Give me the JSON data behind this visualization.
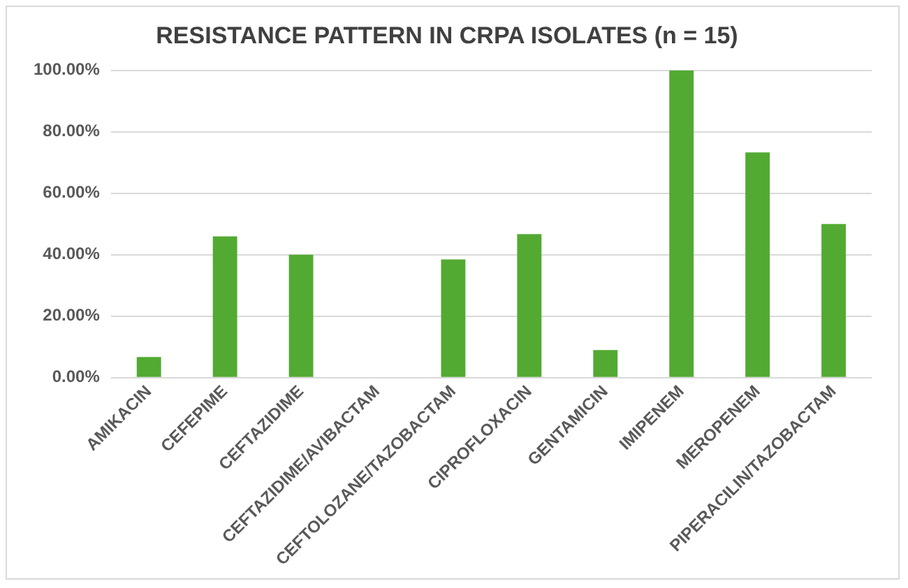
{
  "chart_data": {
    "type": "bar",
    "title": "RESISTANCE PATTERN IN CRPA ISOLATES (n = 15)",
    "categories": [
      "AMIKACIN",
      "CEFEPIME",
      "CEFTAZIDIME",
      "CEFTAZIDIME/AVIBACTAM",
      "CEFTOLOZANE/TAZOBACTAM",
      "CIPROFLOXACIN",
      "GENTAMICIN",
      "IMIPENEM",
      "MEROPENEM",
      "PIPERACILIN/TAZOBACTAM"
    ],
    "values": [
      6.7,
      46,
      40,
      0,
      38.5,
      46.7,
      9,
      100,
      73.3,
      50
    ],
    "color": "#52aa32",
    "ylim": [
      0,
      100
    ],
    "yticks": [
      {
        "value": 0,
        "label": "0.00%"
      },
      {
        "value": 20,
        "label": "20.00%"
      },
      {
        "value": 40,
        "label": "40.00%"
      },
      {
        "value": 60,
        "label": "60.00%"
      },
      {
        "value": 80,
        "label": "80.00%"
      },
      {
        "value": 100,
        "label": "100.00%"
      }
    ],
    "grid": "y"
  }
}
